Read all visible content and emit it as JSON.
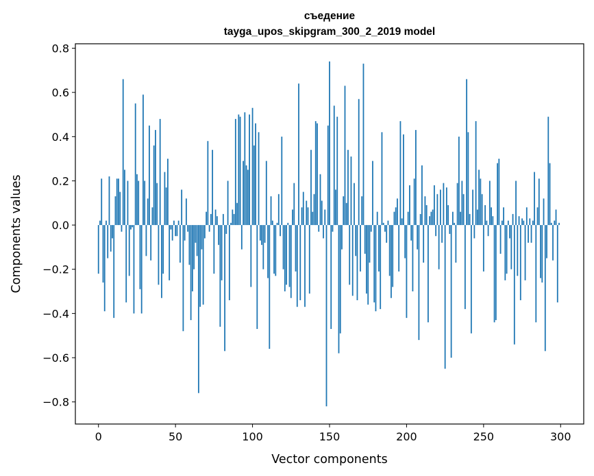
{
  "chart_data": {
    "type": "bar",
    "title": "съедение",
    "subtitle": "tayga_upos_skipgram_300_2_2019 model",
    "xlabel": "Vector components",
    "ylabel": "Components values",
    "xlim": [
      -15,
      315
    ],
    "ylim": [
      -0.9,
      0.82
    ],
    "xticks": [
      0,
      50,
      100,
      150,
      200,
      250,
      300
    ],
    "xtick_labels": [
      "0",
      "50",
      "100",
      "150",
      "200",
      "250",
      "300"
    ],
    "yticks": [
      -0.8,
      -0.6,
      -0.4,
      -0.2,
      0.0,
      0.2,
      0.4,
      0.6,
      0.8
    ],
    "ytick_labels": [
      "−0.8",
      "−0.6",
      "−0.4",
      "−0.2",
      "0.0",
      "0.2",
      "0.4",
      "0.6",
      "0.8"
    ],
    "grid": false,
    "bar_color": "#1f77b4",
    "x": "0..299",
    "values": [
      -0.22,
      0.02,
      0.21,
      -0.26,
      -0.39,
      0.02,
      -0.15,
      0.22,
      -0.12,
      -0.06,
      -0.42,
      0.13,
      0.21,
      0.21,
      0.15,
      -0.03,
      0.66,
      0.25,
      -0.35,
      0.2,
      -0.23,
      -0.02,
      -0.01,
      -0.4,
      0.55,
      0.23,
      0.2,
      -0.29,
      -0.4,
      0.59,
      0.2,
      -0.14,
      0.12,
      0.45,
      -0.16,
      0.08,
      0.36,
      0.43,
      0.19,
      -0.27,
      0.48,
      -0.33,
      -0.22,
      0.24,
      0.17,
      0.3,
      -0.25,
      -0.02,
      -0.07,
      0.02,
      -0.05,
      -0.05,
      0.02,
      -0.17,
      0.16,
      -0.48,
      -0.07,
      0.12,
      -0.03,
      -0.18,
      -0.43,
      -0.3,
      -0.2,
      -0.08,
      -0.14,
      -0.76,
      -0.37,
      -0.11,
      -0.36,
      -0.06,
      0.06,
      0.38,
      -0.03,
      0.05,
      0.34,
      -0.22,
      0.07,
      0.04,
      -0.09,
      -0.46,
      -0.25,
      0.05,
      -0.57,
      -0.04,
      0.2,
      -0.34,
      0.01,
      0.07,
      0.05,
      0.48,
      0.1,
      0.5,
      0.49,
      -0.11,
      0.29,
      0.51,
      0.27,
      0.25,
      0.5,
      -0.28,
      0.53,
      0.36,
      0.46,
      -0.47,
      0.42,
      -0.07,
      -0.09,
      -0.2,
      -0.08,
      0.29,
      -0.24,
      -0.56,
      0.13,
      0.02,
      -0.22,
      -0.23,
      0.01,
      0.14,
      -0.05,
      0.4,
      -0.2,
      -0.3,
      -0.27,
      0.01,
      -0.28,
      -0.33,
      0.07,
      0.19,
      -0.21,
      -0.37,
      0.64,
      -0.34,
      0.08,
      0.15,
      -0.37,
      0.11,
      0.08,
      -0.31,
      0.34,
      0.06,
      0.14,
      0.47,
      0.46,
      -0.03,
      0.23,
      0.11,
      -0.06,
      0.07,
      -0.82,
      0.45,
      0.74,
      -0.47,
      -0.03,
      0.54,
      0.16,
      0.49,
      -0.58,
      -0.49,
      -0.11,
      0.13,
      0.63,
      0.1,
      0.34,
      -0.27,
      0.31,
      -0.32,
      0.19,
      -0.14,
      -0.34,
      0.57,
      -0.21,
      0.13,
      0.73,
      -0.13,
      -0.31,
      -0.36,
      -0.17,
      -0.03,
      0.29,
      -0.35,
      -0.39,
      0.06,
      -0.21,
      -0.38,
      0.42,
      0.01,
      -0.03,
      -0.08,
      0.02,
      -0.23,
      -0.33,
      -0.28,
      0.06,
      0.08,
      0.12,
      -0.21,
      0.47,
      0.03,
      0.41,
      -0.15,
      -0.42,
      0.06,
      0.18,
      -0.07,
      -0.3,
      0.21,
      0.43,
      -0.11,
      -0.52,
      0.05,
      0.27,
      -0.17,
      0.13,
      0.09,
      -0.44,
      0.04,
      0.06,
      0.07,
      0.18,
      -0.05,
      0.14,
      -0.2,
      0.16,
      -0.08,
      0.19,
      -0.65,
      0.17,
      0.09,
      -0.04,
      -0.6,
      0.06,
      0.01,
      -0.17,
      0.19,
      0.4,
      0.06,
      0.2,
      0.14,
      -0.38,
      0.66,
      0.42,
      0.05,
      -0.49,
      0.16,
      -0.06,
      0.47,
      0.07,
      0.25,
      0.21,
      0.14,
      -0.21,
      0.09,
      0.02,
      -0.05,
      0.2,
      0.08,
      0.04,
      -0.44,
      -0.43,
      0.28,
      0.3,
      -0.13,
      0.02,
      0.08,
      -0.25,
      -0.22,
      0.02,
      -0.06,
      -0.2,
      0.05,
      -0.54,
      0.2,
      -0.23,
      0.04,
      -0.34,
      0.03,
      0.02,
      -0.25,
      0.08,
      -0.08,
      0.03,
      -0.08,
      0.02,
      0.24,
      -0.44,
      0.08,
      0.21,
      -0.24,
      -0.26,
      0.12,
      -0.57,
      -0.15,
      0.49,
      0.28,
      0.01,
      -0.16,
      0.02,
      0.07,
      -0.35,
      0.01
    ]
  }
}
